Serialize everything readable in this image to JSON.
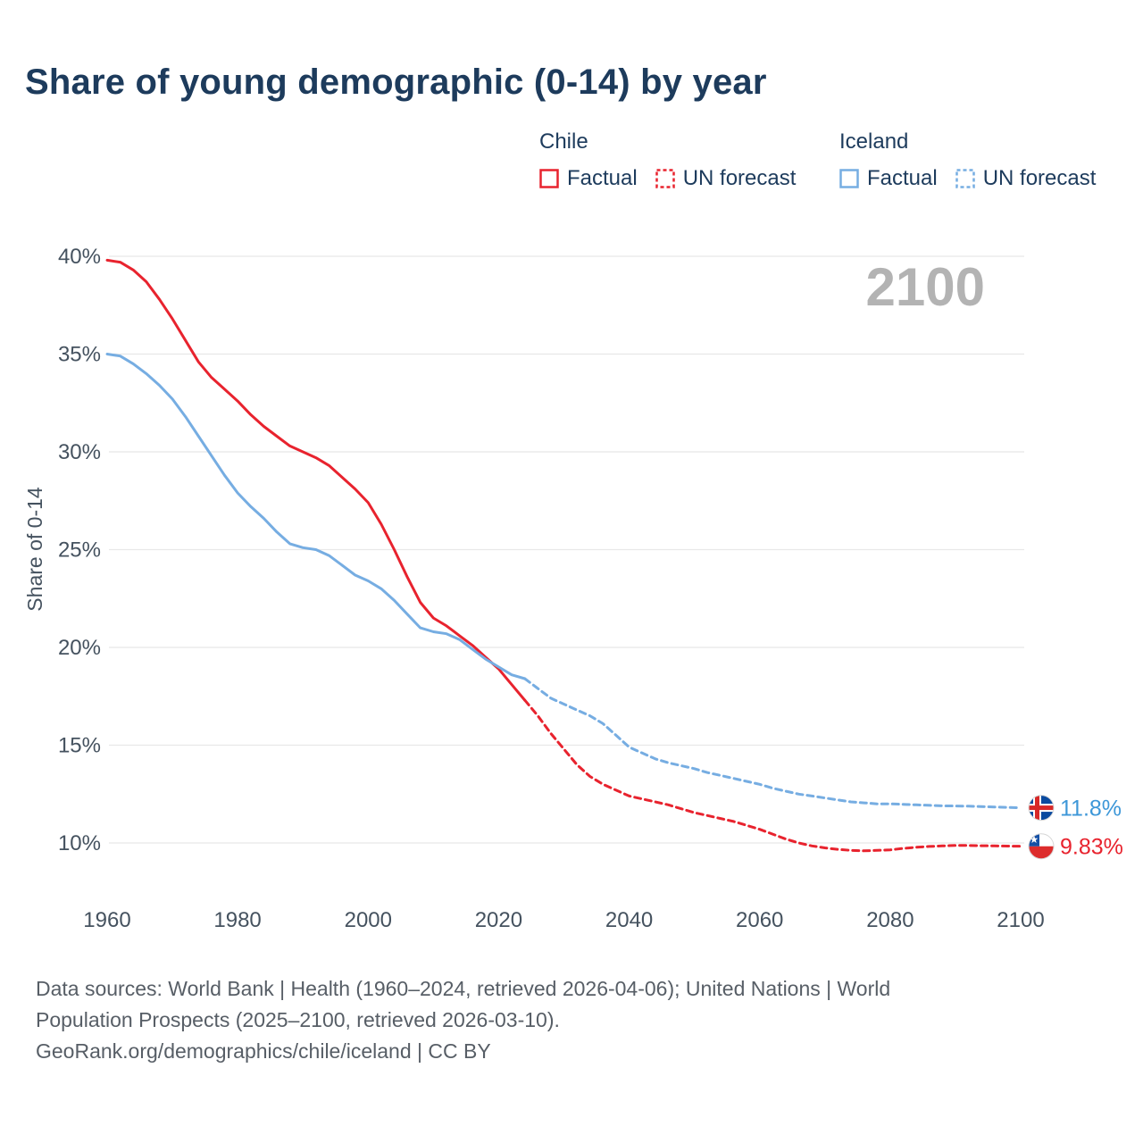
{
  "title": "Share of young demographic (0-14) by year",
  "watermark": "2100",
  "legend": {
    "groups": [
      {
        "name": "Chile",
        "color": "#e8232e",
        "items": [
          {
            "label": "Factual",
            "style": "solid"
          },
          {
            "label": "UN forecast",
            "style": "dashed"
          }
        ]
      },
      {
        "name": "Iceland",
        "color": "#76ade2",
        "items": [
          {
            "label": "Factual",
            "style": "solid"
          },
          {
            "label": "UN forecast",
            "style": "dashed"
          }
        ]
      }
    ]
  },
  "chart_data": {
    "type": "line",
    "title": "Share of young demographic (0-14) by year",
    "xlabel": "",
    "ylabel": "Share of 0-14",
    "ylim": [
      10,
      40
    ],
    "xlim": [
      1960,
      2100
    ],
    "grid": "horizontal",
    "legend_position": "top-right",
    "x_ticks": [
      1960,
      1980,
      2000,
      2020,
      2040,
      2060,
      2080,
      2100
    ],
    "y_ticks": [
      10,
      15,
      20,
      25,
      30,
      35,
      40
    ],
    "y_tick_suffix": "%",
    "series": [
      {
        "name": "Chile Factual",
        "color": "#e8232e",
        "dash": "solid",
        "points": [
          [
            1960,
            39.8
          ],
          [
            1962,
            39.7
          ],
          [
            1964,
            39.3
          ],
          [
            1966,
            38.7
          ],
          [
            1968,
            37.8
          ],
          [
            1970,
            36.8
          ],
          [
            1972,
            35.7
          ],
          [
            1974,
            34.6
          ],
          [
            1976,
            33.8
          ],
          [
            1978,
            33.2
          ],
          [
            1980,
            32.6
          ],
          [
            1982,
            31.9
          ],
          [
            1984,
            31.3
          ],
          [
            1986,
            30.8
          ],
          [
            1988,
            30.3
          ],
          [
            1990,
            30.0
          ],
          [
            1992,
            29.7
          ],
          [
            1994,
            29.3
          ],
          [
            1996,
            28.7
          ],
          [
            1998,
            28.1
          ],
          [
            2000,
            27.4
          ],
          [
            2002,
            26.3
          ],
          [
            2004,
            25.0
          ],
          [
            2006,
            23.6
          ],
          [
            2008,
            22.3
          ],
          [
            2010,
            21.5
          ],
          [
            2012,
            21.1
          ],
          [
            2014,
            20.6
          ],
          [
            2016,
            20.1
          ],
          [
            2018,
            19.5
          ],
          [
            2020,
            18.9
          ],
          [
            2022,
            18.1
          ],
          [
            2024,
            17.3
          ]
        ]
      },
      {
        "name": "Chile UN forecast",
        "color": "#e8232e",
        "dash": "dashed",
        "points": [
          [
            2024,
            17.3
          ],
          [
            2026,
            16.5
          ],
          [
            2028,
            15.6
          ],
          [
            2030,
            14.8
          ],
          [
            2032,
            14.0
          ],
          [
            2034,
            13.4
          ],
          [
            2036,
            13.0
          ],
          [
            2038,
            12.7
          ],
          [
            2040,
            12.4
          ],
          [
            2042,
            12.25
          ],
          [
            2044,
            12.1
          ],
          [
            2046,
            11.95
          ],
          [
            2048,
            11.75
          ],
          [
            2050,
            11.55
          ],
          [
            2052,
            11.4
          ],
          [
            2054,
            11.25
          ],
          [
            2056,
            11.1
          ],
          [
            2058,
            10.9
          ],
          [
            2060,
            10.7
          ],
          [
            2062,
            10.45
          ],
          [
            2064,
            10.2
          ],
          [
            2066,
            10.0
          ],
          [
            2068,
            9.85
          ],
          [
            2070,
            9.75
          ],
          [
            2072,
            9.67
          ],
          [
            2074,
            9.62
          ],
          [
            2076,
            9.6
          ],
          [
            2078,
            9.62
          ],
          [
            2080,
            9.65
          ],
          [
            2082,
            9.72
          ],
          [
            2084,
            9.78
          ],
          [
            2086,
            9.82
          ],
          [
            2088,
            9.85
          ],
          [
            2090,
            9.87
          ],
          [
            2092,
            9.87
          ],
          [
            2094,
            9.86
          ],
          [
            2096,
            9.85
          ],
          [
            2098,
            9.84
          ],
          [
            2100,
            9.83
          ]
        ]
      },
      {
        "name": "Iceland Factual",
        "color": "#76ade2",
        "dash": "solid",
        "points": [
          [
            1960,
            35.0
          ],
          [
            1962,
            34.9
          ],
          [
            1964,
            34.5
          ],
          [
            1966,
            34.0
          ],
          [
            1968,
            33.4
          ],
          [
            1970,
            32.7
          ],
          [
            1972,
            31.8
          ],
          [
            1974,
            30.8
          ],
          [
            1976,
            29.8
          ],
          [
            1978,
            28.8
          ],
          [
            1980,
            27.9
          ],
          [
            1982,
            27.2
          ],
          [
            1984,
            26.6
          ],
          [
            1986,
            25.9
          ],
          [
            1988,
            25.3
          ],
          [
            1990,
            25.1
          ],
          [
            1992,
            25.0
          ],
          [
            1994,
            24.7
          ],
          [
            1996,
            24.2
          ],
          [
            1998,
            23.7
          ],
          [
            2000,
            23.4
          ],
          [
            2002,
            23.0
          ],
          [
            2004,
            22.4
          ],
          [
            2006,
            21.7
          ],
          [
            2008,
            21.0
          ],
          [
            2010,
            20.8
          ],
          [
            2012,
            20.7
          ],
          [
            2014,
            20.4
          ],
          [
            2016,
            19.9
          ],
          [
            2018,
            19.4
          ],
          [
            2020,
            19.0
          ],
          [
            2022,
            18.6
          ],
          [
            2024,
            18.4
          ]
        ]
      },
      {
        "name": "Iceland UN forecast",
        "color": "#76ade2",
        "dash": "dashed",
        "points": [
          [
            2024,
            18.4
          ],
          [
            2026,
            17.9
          ],
          [
            2028,
            17.4
          ],
          [
            2030,
            17.1
          ],
          [
            2032,
            16.8
          ],
          [
            2034,
            16.5
          ],
          [
            2036,
            16.1
          ],
          [
            2038,
            15.5
          ],
          [
            2040,
            14.9
          ],
          [
            2042,
            14.6
          ],
          [
            2044,
            14.3
          ],
          [
            2046,
            14.1
          ],
          [
            2048,
            13.95
          ],
          [
            2050,
            13.8
          ],
          [
            2052,
            13.6
          ],
          [
            2054,
            13.45
          ],
          [
            2056,
            13.3
          ],
          [
            2058,
            13.15
          ],
          [
            2060,
            13.0
          ],
          [
            2062,
            12.8
          ],
          [
            2064,
            12.65
          ],
          [
            2066,
            12.5
          ],
          [
            2068,
            12.4
          ],
          [
            2070,
            12.3
          ],
          [
            2072,
            12.2
          ],
          [
            2074,
            12.1
          ],
          [
            2076,
            12.05
          ],
          [
            2078,
            12.0
          ],
          [
            2080,
            12.0
          ],
          [
            2084,
            11.95
          ],
          [
            2088,
            11.9
          ],
          [
            2092,
            11.88
          ],
          [
            2096,
            11.84
          ],
          [
            2100,
            11.8
          ]
        ]
      }
    ],
    "end_labels": [
      {
        "series": "Iceland",
        "flag": "iceland",
        "value": 11.8,
        "value_label": "11.8%",
        "color": "#3d97d8"
      },
      {
        "series": "Chile",
        "flag": "chile",
        "value": 9.83,
        "value_label": "9.83%",
        "color": "#e8232e"
      }
    ]
  },
  "footer": {
    "lines": [
      "Data sources: World Bank | Health (1960–2024, retrieved 2026-04-06); United Nations | World",
      "Population Prospects (2025–2100, retrieved 2026-03-10).",
      "GeoRank.org/demographics/chile/iceland | CC BY"
    ]
  }
}
